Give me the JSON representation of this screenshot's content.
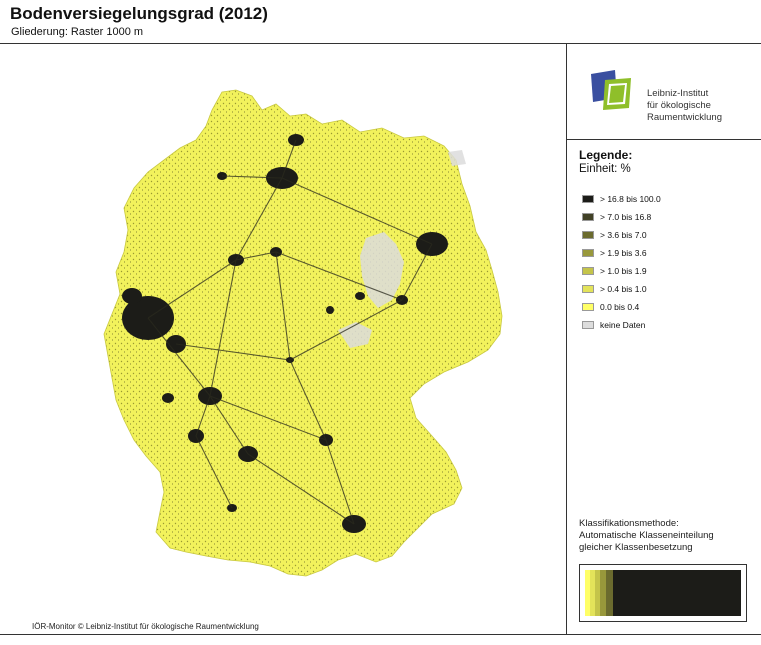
{
  "header": {
    "title": "Bodenversiegelungsgrad (2012)",
    "subtitle": "Gliederung: Raster 1000 m"
  },
  "logo": {
    "line1": "Leibniz-Institut",
    "line2": "für ökologische",
    "line3": "Raumentwicklung"
  },
  "legend": {
    "title": "Legende:",
    "unit": "Einheit: %",
    "classes": [
      {
        "label": "> 16.8 bis 100.0",
        "color": "#1c1c18"
      },
      {
        "label": "> 7.0 bis 16.8",
        "color": "#414126"
      },
      {
        "label": "> 3.6 bis 7.0",
        "color": "#6b6b2e"
      },
      {
        "label": "> 1.9 bis 3.6",
        "color": "#98983b"
      },
      {
        "label": "> 1.0 bis 1.9",
        "color": "#c4c44a"
      },
      {
        "label": "> 0.4 bis 1.0",
        "color": "#e3e35a"
      },
      {
        "label": "0.0 bis 0.4",
        "color": "#ffff66"
      },
      {
        "label": "keine Daten",
        "color": "#dddddd"
      }
    ]
  },
  "method": {
    "line1": "Klassifikationsmethode:",
    "line2": "Automatische Klasseneinteilung",
    "line3": "gleicher Klassenbesetzung"
  },
  "footer": {
    "credit": "IÖR-Monitor © Leibniz-Institut für ökologische Raumentwicklung"
  },
  "colors": {
    "land": "#f2f25c",
    "urban": "#1c1c18",
    "no_data": "#dddddd"
  }
}
